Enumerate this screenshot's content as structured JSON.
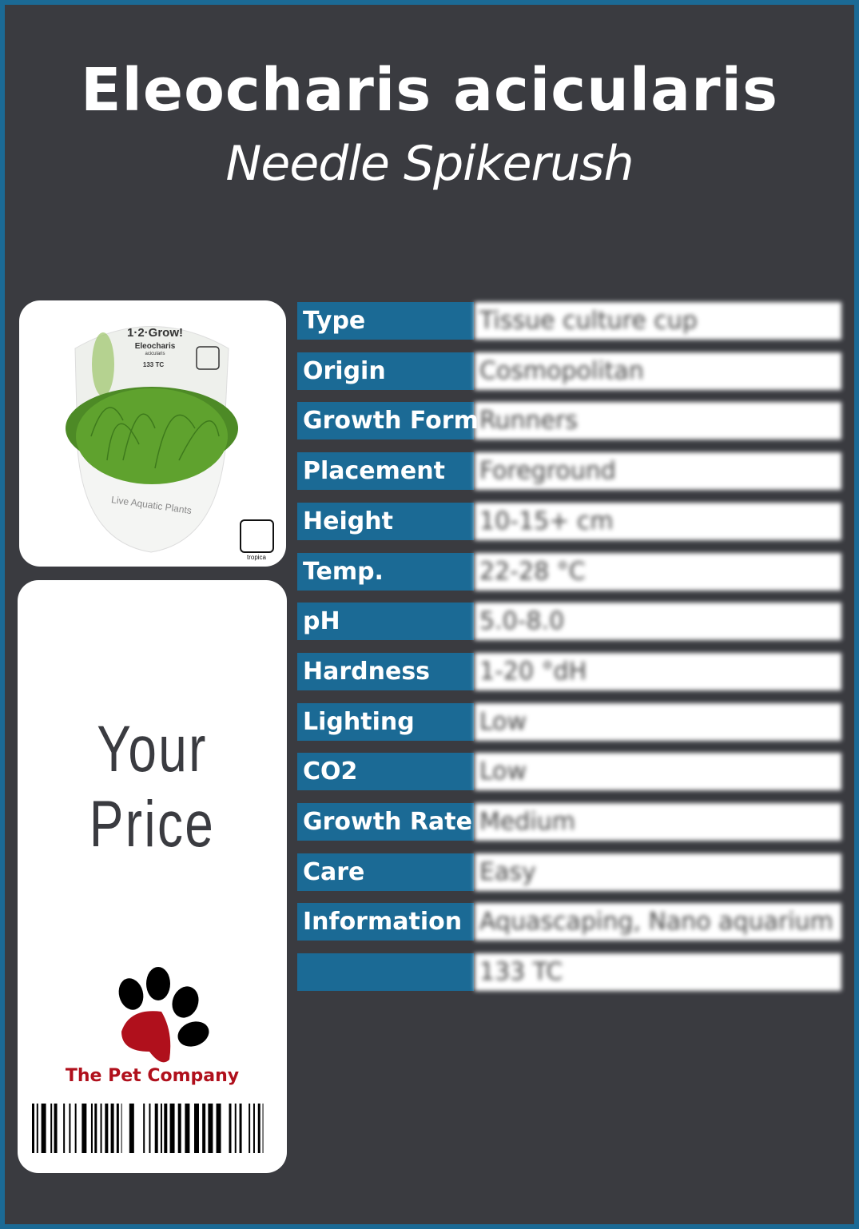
{
  "title": "Eleocharis acicularis",
  "subtitle": "Needle Spikerush",
  "product_image": {
    "label_text": [
      "1·2·Grow!",
      "Eleocharis",
      "acicularis",
      "133 TC",
      "Live Aquatic Plants",
      "tropica"
    ]
  },
  "price_label": "Your  Price",
  "brand": "The Pet Company",
  "colors": {
    "accent": "#1b6a95",
    "background": "#3a3b40",
    "brand": "#b0101c"
  },
  "specs": [
    {
      "label": "Type",
      "value": "Tissue culture cup"
    },
    {
      "label": "Origin",
      "value": "Cosmopolitan"
    },
    {
      "label": "Growth Form",
      "value": "Runners"
    },
    {
      "label": "Placement",
      "value": "Foreground"
    },
    {
      "label": "Height",
      "value": "10-15+ cm"
    },
    {
      "label": "Temp.",
      "value": "22-28 °C"
    },
    {
      "label": "pH",
      "value": "5.0-8.0"
    },
    {
      "label": "Hardness",
      "value": "1-20 °dH"
    },
    {
      "label": "Lighting",
      "value": "Low"
    },
    {
      "label": "CO2",
      "value": "Low"
    },
    {
      "label": "Growth Rate",
      "value": "Medium"
    },
    {
      "label": "Care",
      "value": "Easy"
    },
    {
      "label": "Information",
      "value": "Aquascaping, Nano aquarium"
    },
    {
      "label": "",
      "value": "133 TC"
    }
  ]
}
